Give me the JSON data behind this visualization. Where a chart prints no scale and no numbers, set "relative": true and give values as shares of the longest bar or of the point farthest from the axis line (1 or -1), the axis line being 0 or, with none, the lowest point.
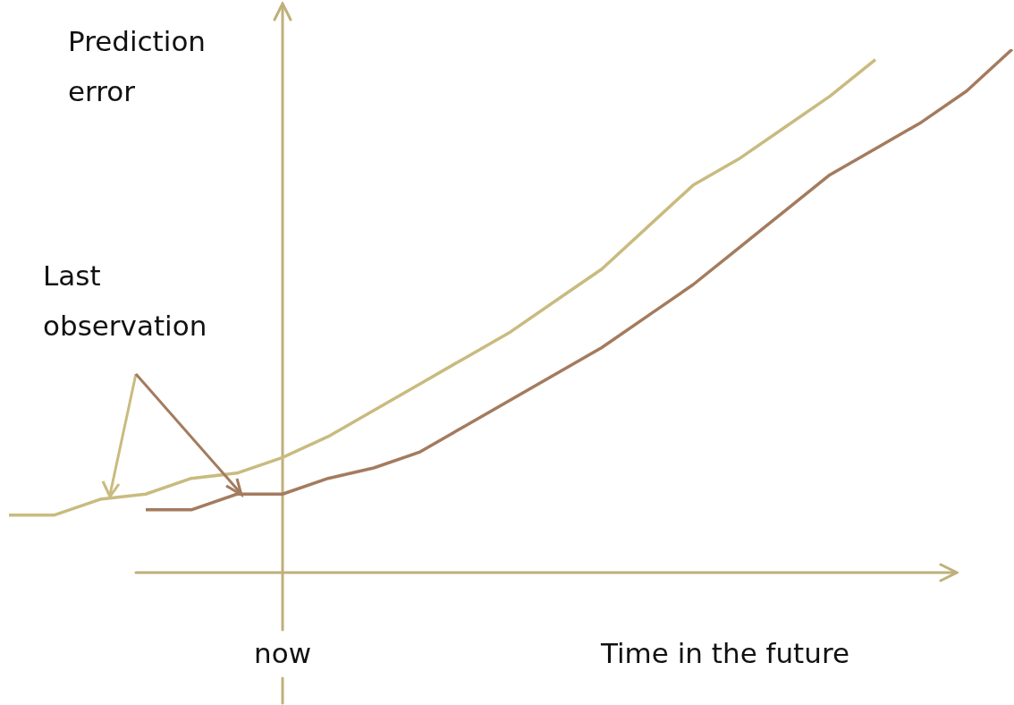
{
  "chart_data": {
    "type": "line",
    "relative": true,
    "xlabel": "Time in the future",
    "ylabel": "Prediction error",
    "annotations": [
      "Last observation",
      "now"
    ],
    "categories": [
      null,
      null,
      null,
      null,
      null,
      null,
      null,
      null,
      null,
      null,
      null,
      null,
      null,
      null,
      null,
      null,
      null,
      null,
      null,
      null,
      null,
      null,
      null
    ],
    "series": [
      {
        "color": "#c9bb7f",
        "values": [
          0.11,
          0.11,
          0.14,
          0.15,
          0.18,
          0.19,
          0.22,
          0.26,
          0.31,
          0.36,
          0.41,
          0.46,
          0.52,
          0.58,
          0.66,
          0.74,
          0.79,
          0.85,
          0.91,
          0.98,
          null,
          null,
          null
        ]
      },
      {
        "color": "#a47b5e",
        "values": [
          null,
          null,
          null,
          0.12,
          0.12,
          0.15,
          0.15,
          0.18,
          0.2,
          0.23,
          0.28,
          0.33,
          0.38,
          0.43,
          0.49,
          0.55,
          0.62,
          0.69,
          0.76,
          0.81,
          0.86,
          0.92,
          1
        ]
      }
    ]
  }
}
